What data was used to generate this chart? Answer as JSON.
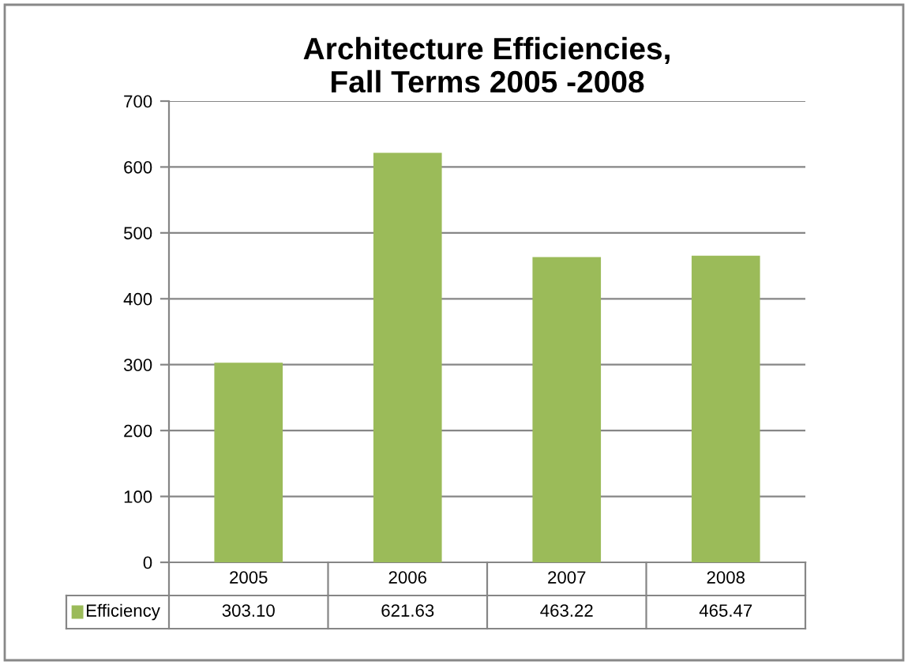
{
  "chart_data": {
    "type": "bar",
    "title": "Architecture Efficiencies,\nFall Terms 2005 -2008",
    "categories": [
      "2005",
      "2006",
      "2007",
      "2008"
    ],
    "series": [
      {
        "name": "Efficiency",
        "color": "#9bbb59",
        "values": [
          303.1,
          621.63,
          463.22,
          465.47
        ],
        "value_labels": [
          "303.10",
          "621.63",
          "463.22",
          "465.47"
        ]
      }
    ],
    "ylim": [
      0,
      700
    ],
    "yticks": [
      0,
      100,
      200,
      300,
      400,
      500,
      600,
      700
    ],
    "grid": "y",
    "legend": "bottom"
  }
}
